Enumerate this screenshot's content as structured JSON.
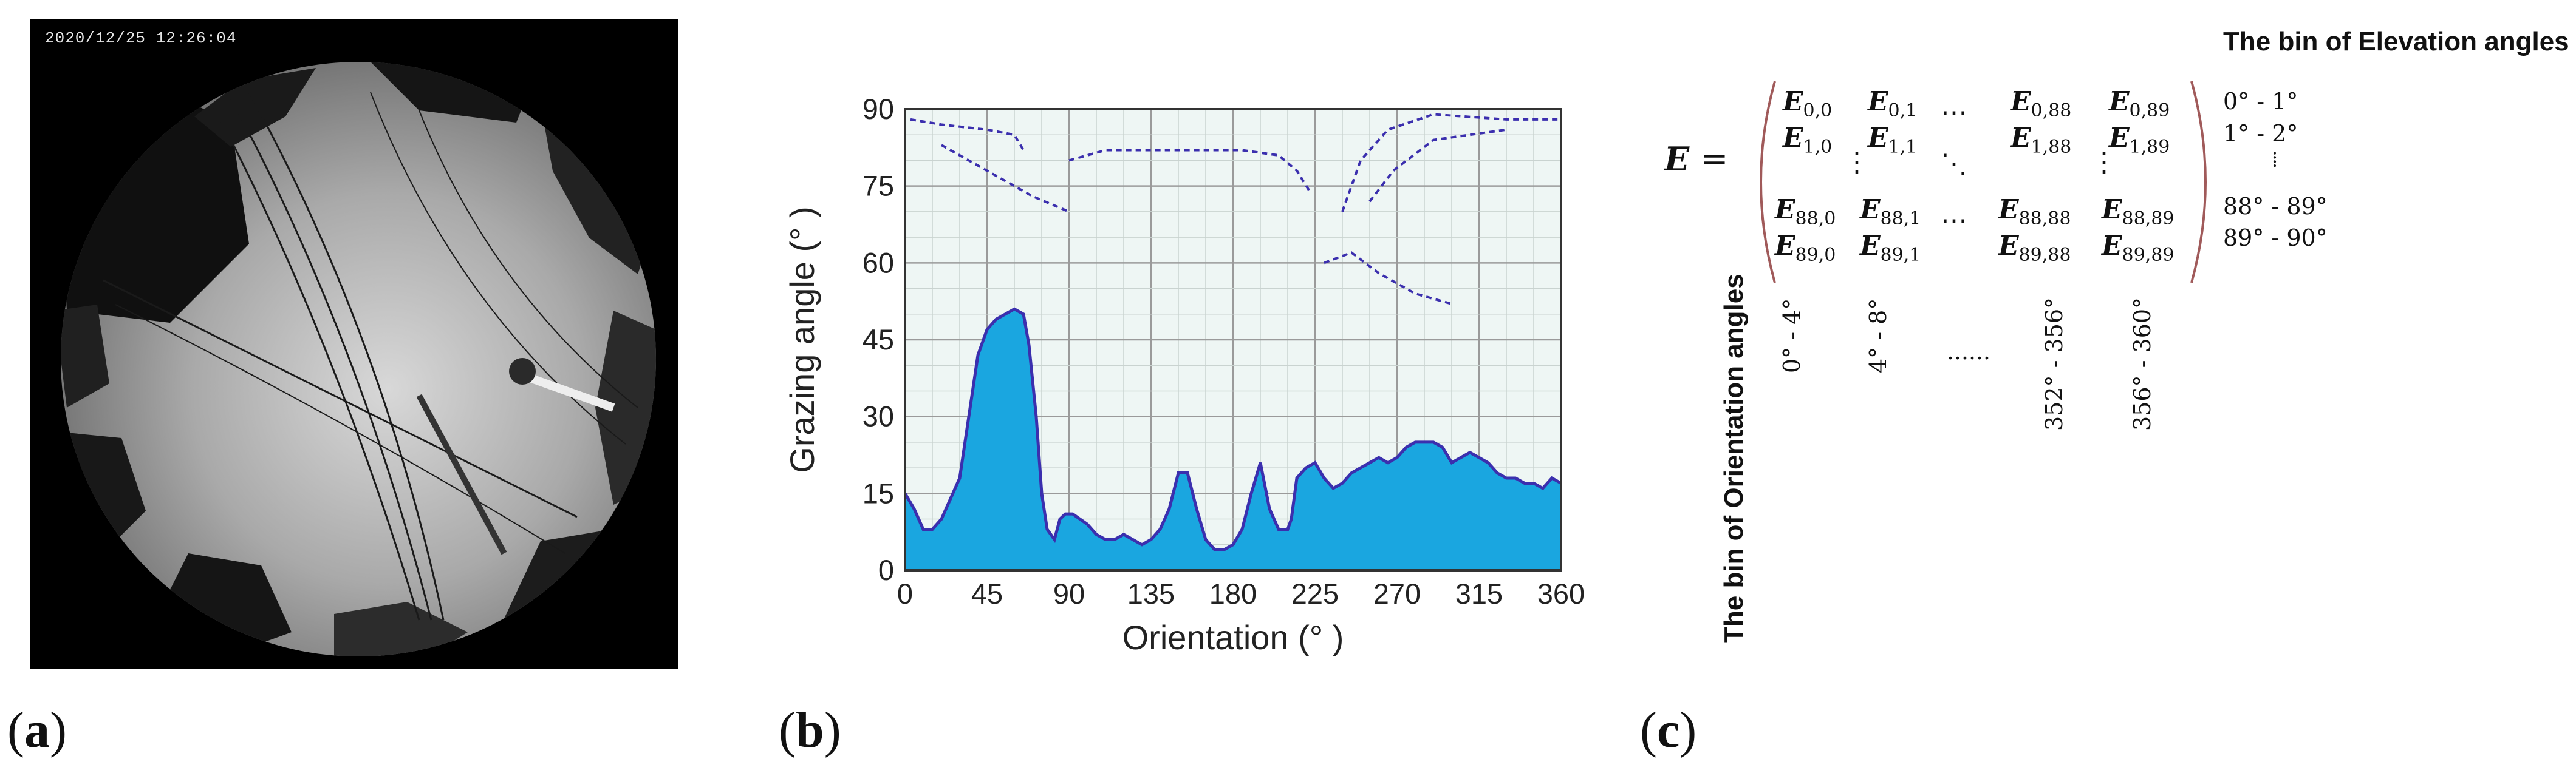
{
  "panel_a": {
    "label": "a",
    "timestamp": "2020/12/25 12:26:04"
  },
  "panel_b": {
    "label": "b"
  },
  "panel_c": {
    "label": "c",
    "elevation_title": "The bin of Elevation angles",
    "orientation_title": "The bin of Orientation angles",
    "matrix_symbol": "E",
    "equals": "=",
    "cells": {
      "r0c0": "0,0",
      "r0c1": "0,1",
      "r0c2": "0,88",
      "r0c3": "0,89",
      "r1c0": "1,0",
      "r1c1": "1,1",
      "r1c2": "1,88",
      "r1c3": "1,89",
      "r2c0": "88,0",
      "r2c1": "88,1",
      "r2c2": "88,88",
      "r2c3": "88,89",
      "r3c0": "89,0",
      "r3c1": "89,1",
      "r3c2": "89,88",
      "r3c3": "89,89"
    },
    "elevation_bins": [
      "0°  -  1°",
      "1°  -  2°",
      "88°  - 89°",
      "89°  - 90°"
    ],
    "orientation_bins": [
      "0°   -  4°",
      "4°   -  8°",
      "352°  -  356°",
      "356°  -  360°"
    ]
  },
  "chart_data": {
    "type": "area",
    "title": "",
    "xlabel": "Orientation (°  )",
    "ylabel": "Grazing angle (°  )",
    "xlim": [
      0,
      360
    ],
    "ylim": [
      0,
      90
    ],
    "xticks": [
      0,
      45,
      90,
      135,
      180,
      225,
      270,
      315,
      360
    ],
    "yticks": [
      0,
      15,
      30,
      45,
      60,
      75,
      90
    ],
    "grid": true,
    "colors": {
      "fill": "#1aa6e0",
      "outline": "#3b2fae",
      "background": "#eef6f4",
      "grid": "#9a9a9a"
    },
    "series": [
      {
        "x": [
          0,
          5,
          10,
          15,
          20,
          25,
          30,
          35,
          40,
          45,
          50,
          55,
          60,
          65,
          68,
          72,
          75,
          78,
          82,
          85,
          88,
          92,
          96,
          100,
          105,
          110,
          115,
          120,
          125,
          130,
          135,
          140,
          145,
          150,
          155,
          160,
          165,
          170,
          175,
          180,
          185,
          190,
          195,
          200,
          205,
          210,
          212,
          215,
          220,
          225,
          230,
          235,
          240,
          245,
          250,
          255,
          260,
          265,
          270,
          275,
          280,
          285,
          290,
          295,
          300,
          305,
          310,
          315,
          320,
          325,
          330,
          335,
          340,
          345,
          350,
          355,
          360
        ],
        "y": [
          15,
          12,
          8,
          8,
          10,
          14,
          18,
          30,
          42,
          47,
          49,
          50,
          51,
          50,
          44,
          30,
          15,
          8,
          6,
          10,
          11,
          11,
          10,
          9,
          7,
          6,
          6,
          7,
          6,
          5,
          6,
          8,
          12,
          19,
          19,
          12,
          6,
          4,
          4,
          5,
          8,
          15,
          21,
          12,
          8,
          8,
          10,
          18,
          20,
          21,
          18,
          16,
          17,
          19,
          20,
          21,
          22,
          21,
          22,
          24,
          25,
          25,
          25,
          24,
          21,
          22,
          23,
          22,
          21,
          19,
          18,
          18,
          17,
          17,
          16,
          18,
          17
        ]
      }
    ]
  }
}
